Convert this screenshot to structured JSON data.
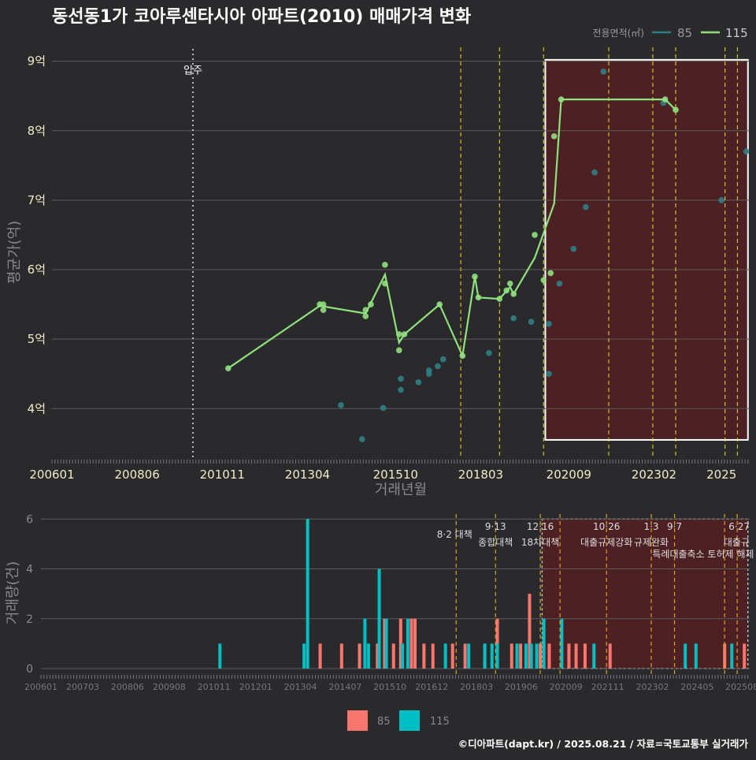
{
  "title": "동선동1가 코아루센타시아 아파트(2010) 매매가격 변화",
  "footer": "©디아파트(dapt.kr) / 2025.08.21 / 자료=국토교통부 실거래가",
  "colors": {
    "background": "#2a2a2c",
    "grid": "#5c5c5c",
    "series_85": "#2e7f86",
    "series_115": "#90e07e",
    "bar_85": "#f8766d",
    "bar_115": "#00bfc4",
    "policy_line": "#e8e02a",
    "policy_line_bottom": "#e0a020",
    "highlight_fill": "#5a1f22",
    "highlight_border": "#ffffff",
    "move_in_line": "#bbbbbb",
    "axis_text_top": "#f0ebc8",
    "axis_text_bottom": "#8a8a8a",
    "axis_title": "#888888"
  },
  "chart_data": [
    {
      "type": "line",
      "name": "price",
      "xlabel": "거래년월",
      "ylabel": "평균가(억)",
      "xlim": [
        2006.0,
        2025.8
      ],
      "ylim": [
        3.3,
        9.2
      ],
      "x_ticks": [
        "200601",
        "200806",
        "201011",
        "201304",
        "201510",
        "201803",
        "202009",
        "202302",
        "2025"
      ],
      "y_ticks": [
        {
          "value": 4,
          "label": "4억"
        },
        {
          "value": 5,
          "label": "5억"
        },
        {
          "value": 6,
          "label": "6억"
        },
        {
          "value": 7,
          "label": "7억"
        },
        {
          "value": 8,
          "label": "8억"
        },
        {
          "value": 9,
          "label": "9억"
        }
      ],
      "grid": true,
      "legend_title": "전용면적(㎡)",
      "legend_position": "top-right",
      "legend": [
        {
          "name": "85",
          "color_key": "series_85"
        },
        {
          "name": "115",
          "color_key": "series_115"
        }
      ],
      "move_in": {
        "x": 2010.0,
        "label": "입주"
      },
      "highlight_range": [
        2020.0,
        2025.75
      ],
      "policy_lines": [
        2017.6,
        2018.7,
        2019.95,
        2021.8,
        2023.05,
        2023.7,
        2025.1,
        2025.45
      ],
      "series_points": {
        "85": [
          [
            2014.2,
            4.05
          ],
          [
            2014.8,
            3.56
          ],
          [
            2015.4,
            4.01
          ],
          [
            2015.9,
            4.27
          ],
          [
            2015.9,
            4.43
          ],
          [
            2016.4,
            4.38
          ],
          [
            2016.7,
            4.5
          ],
          [
            2016.7,
            4.55
          ],
          [
            2016.95,
            4.61
          ],
          [
            2017.1,
            4.71
          ],
          [
            2018.4,
            4.8
          ],
          [
            2019.1,
            5.3
          ],
          [
            2019.6,
            5.25
          ],
          [
            2020.1,
            5.22
          ],
          [
            2020.1,
            4.5
          ],
          [
            2020.4,
            5.8
          ],
          [
            2020.8,
            6.3
          ],
          [
            2021.15,
            6.9
          ],
          [
            2021.4,
            7.4
          ],
          [
            2021.65,
            8.85
          ],
          [
            2023.35,
            8.4
          ],
          [
            2025.0,
            7.0
          ],
          [
            2025.7,
            7.7
          ]
        ],
        "115": [
          [
            2011.0,
            4.58
          ],
          [
            2013.6,
            5.5
          ],
          [
            2013.7,
            5.5
          ],
          [
            2013.7,
            5.42
          ],
          [
            2014.9,
            5.33
          ],
          [
            2014.9,
            5.42
          ],
          [
            2015.05,
            5.5
          ],
          [
            2015.45,
            5.8
          ],
          [
            2015.45,
            6.07
          ],
          [
            2015.85,
            5.07
          ],
          [
            2015.85,
            4.84
          ],
          [
            2016.0,
            5.07
          ],
          [
            2017.0,
            5.5
          ],
          [
            2017.65,
            4.76
          ],
          [
            2018.0,
            5.9
          ],
          [
            2018.1,
            5.6
          ],
          [
            2018.7,
            5.58
          ],
          [
            2018.9,
            5.7
          ],
          [
            2019.0,
            5.8
          ],
          [
            2019.1,
            5.65
          ],
          [
            2019.7,
            6.5
          ],
          [
            2019.95,
            5.85
          ],
          [
            2020.15,
            5.95
          ],
          [
            2020.25,
            7.92
          ],
          [
            2020.45,
            8.45
          ],
          [
            2023.4,
            8.45
          ],
          [
            2023.7,
            8.3
          ]
        ],
        "115_line": [
          [
            2011.0,
            4.58
          ],
          [
            2013.6,
            5.48
          ],
          [
            2014.9,
            5.37
          ],
          [
            2015.45,
            5.93
          ],
          [
            2015.85,
            4.95
          ],
          [
            2016.0,
            5.07
          ],
          [
            2017.0,
            5.5
          ],
          [
            2017.65,
            4.76
          ],
          [
            2018.0,
            5.9
          ],
          [
            2018.1,
            5.6
          ],
          [
            2018.7,
            5.58
          ],
          [
            2019.0,
            5.75
          ],
          [
            2019.1,
            5.65
          ],
          [
            2019.7,
            6.17
          ],
          [
            2020.25,
            6.95
          ],
          [
            2020.45,
            8.45
          ],
          [
            2023.4,
            8.45
          ],
          [
            2023.7,
            8.3
          ]
        ]
      }
    },
    {
      "type": "bar",
      "name": "volume",
      "ylabel": "거래량(건)",
      "xlim": [
        2006.0,
        2025.8
      ],
      "ylim": [
        0,
        6.2
      ],
      "x_ticks": [
        "200601",
        "200703",
        "200806",
        "200908",
        "201011",
        "201201",
        "201304",
        "201407",
        "201510",
        "201612",
        "201803",
        "201906",
        "202009",
        "202111",
        "202302",
        "202405",
        "202508"
      ],
      "y_ticks": [
        0,
        2,
        4,
        6
      ],
      "grid": true,
      "highlight_range": [
        2020.0,
        2025.75
      ],
      "policy_lines": [
        2017.6,
        2018.7,
        2019.95,
        2020.5,
        2021.8,
        2023.05,
        2023.7,
        2025.1,
        2025.45
      ],
      "policy_labels": [
        {
          "x": 2017.6,
          "date": "",
          "text": "8·2 대책"
        },
        {
          "x": 2018.7,
          "date": "9·13",
          "text": "종합대책"
        },
        {
          "x": 2019.95,
          "date": "12·16",
          "text": "18차대책"
        },
        {
          "x": 2021.8,
          "date": "10·26",
          "text": "대출규제강화"
        },
        {
          "x": 2023.05,
          "date": "1·3",
          "text": "규제완화"
        },
        {
          "x": 2023.7,
          "date": "9·7",
          "text": ""
        },
        {
          "x": 2024.5,
          "date": "",
          "text": "특례대출축소 토허제 해제"
        },
        {
          "x": 2025.45,
          "date": "6·27",
          "text": "대출규"
        }
      ],
      "legend": [
        {
          "name": "85",
          "color_key": "bar_85"
        },
        {
          "name": "115",
          "color_key": "bar_115"
        }
      ],
      "legend_position": "bottom",
      "bars_85": [
        [
          2013.8,
          1
        ],
        [
          2014.4,
          1
        ],
        [
          2014.9,
          1
        ],
        [
          2015.4,
          1
        ],
        [
          2015.6,
          2
        ],
        [
          2015.85,
          1
        ],
        [
          2016.05,
          2
        ],
        [
          2016.35,
          2
        ],
        [
          2016.45,
          2
        ],
        [
          2016.7,
          1
        ],
        [
          2016.95,
          1
        ],
        [
          2017.5,
          1
        ],
        [
          2017.85,
          1
        ],
        [
          2018.4,
          1
        ],
        [
          2018.75,
          2
        ],
        [
          2019.15,
          1
        ],
        [
          2019.4,
          1
        ],
        [
          2019.65,
          3
        ],
        [
          2019.95,
          1
        ],
        [
          2020.2,
          1
        ],
        [
          2020.75,
          1
        ],
        [
          2020.95,
          1
        ],
        [
          2021.2,
          1
        ],
        [
          2021.9,
          1
        ],
        [
          2025.1,
          1
        ],
        [
          2025.65,
          1
        ]
      ],
      "bars_115": [
        [
          2011.0,
          1
        ],
        [
          2013.35,
          1
        ],
        [
          2013.45,
          6
        ],
        [
          2015.05,
          2
        ],
        [
          2015.15,
          1
        ],
        [
          2015.45,
          4
        ],
        [
          2015.65,
          2
        ],
        [
          2016.1,
          1
        ],
        [
          2016.25,
          2
        ],
        [
          2017.3,
          1
        ],
        [
          2017.95,
          1
        ],
        [
          2018.4,
          1
        ],
        [
          2018.6,
          1
        ],
        [
          2018.75,
          1
        ],
        [
          2019.3,
          1
        ],
        [
          2019.55,
          1
        ],
        [
          2019.7,
          1
        ],
        [
          2019.85,
          1
        ],
        [
          2020.05,
          2
        ],
        [
          2020.55,
          2
        ],
        [
          2021.45,
          1
        ],
        [
          2024.0,
          1
        ],
        [
          2024.3,
          1
        ],
        [
          2025.3,
          1
        ]
      ]
    }
  ]
}
